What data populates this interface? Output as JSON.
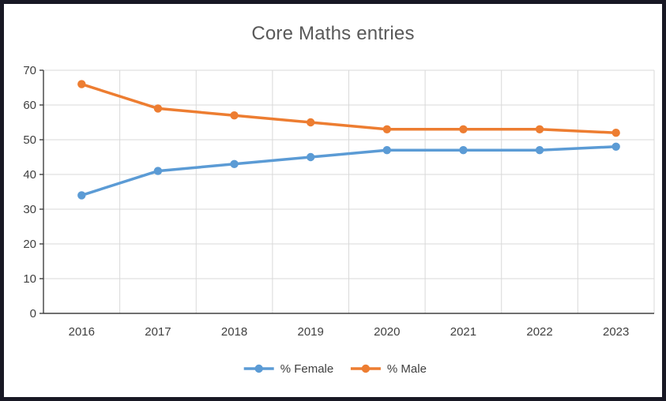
{
  "chart_data": {
    "type": "line",
    "title": "Core Maths entries",
    "categories": [
      "2016",
      "2017",
      "2018",
      "2019",
      "2020",
      "2021",
      "2022",
      "2023"
    ],
    "series": [
      {
        "name": "% Female",
        "color": "#5B9BD5",
        "values": [
          34,
          41,
          43,
          45,
          47,
          47,
          47,
          48
        ]
      },
      {
        "name": "% Male",
        "color": "#ED7D31",
        "values": [
          66,
          59,
          57,
          55,
          53,
          53,
          53,
          52
        ]
      }
    ],
    "ylim": [
      0,
      70
    ],
    "ytick_step": 10,
    "yticks": [
      0,
      10,
      20,
      30,
      40,
      50,
      60,
      70
    ],
    "grid": true,
    "legend_position": "bottom",
    "colors": {
      "gridline": "#d9d9d9",
      "axis": "#404040",
      "tick_label": "#404040",
      "title_text": "#595959",
      "frame": "#181824"
    }
  }
}
